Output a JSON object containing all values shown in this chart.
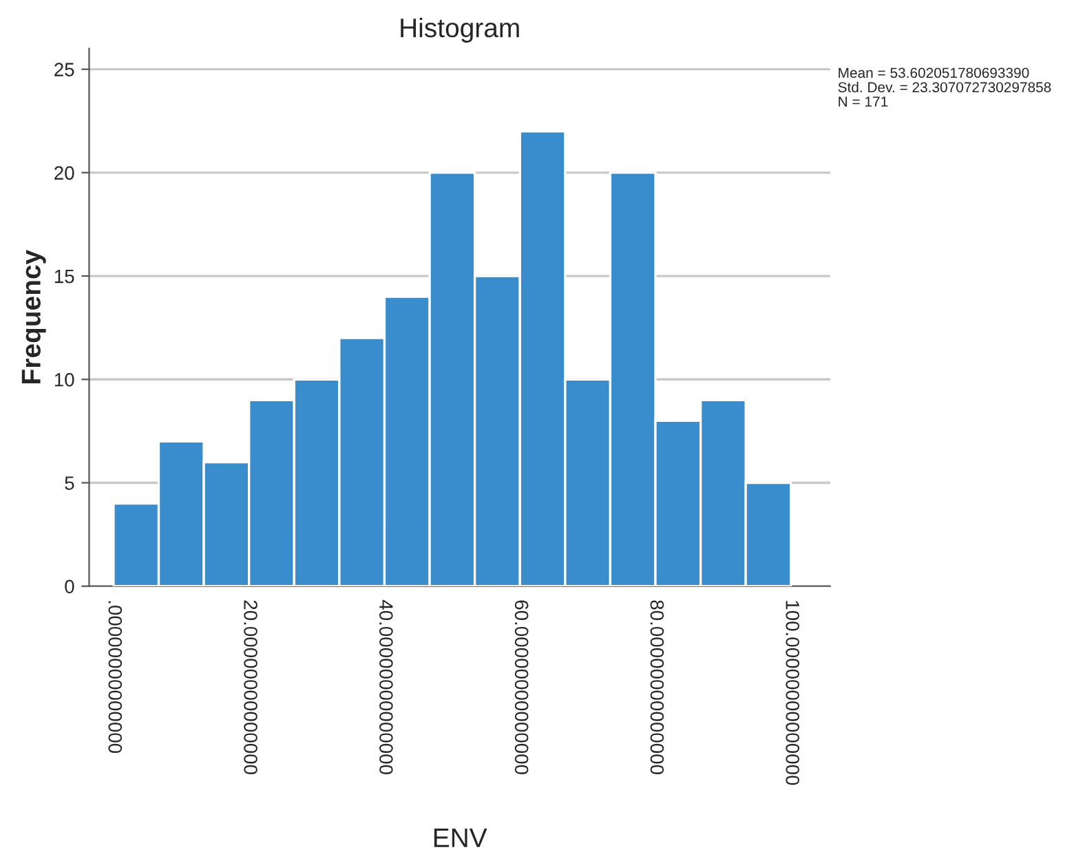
{
  "chart_data": {
    "type": "histogram",
    "title": "Histogram",
    "xlabel": "ENV",
    "ylabel": "Frequency",
    "bins": [
      0,
      6.67,
      13.33,
      20,
      26.67,
      33.33,
      40,
      46.67,
      53.33,
      60,
      66.67,
      73.33,
      80,
      86.67,
      93.33,
      100
    ],
    "values": [
      4,
      7,
      6,
      9,
      10,
      12,
      14,
      20,
      15,
      22,
      10,
      20,
      8,
      9,
      5
    ],
    "color": "#3a8dcc",
    "xlim": [
      -3.6,
      105.8
    ],
    "xticks": [
      {
        "value": 0,
        "label": ".00000000000000"
      },
      {
        "value": 20,
        "label": "20.00000000000000"
      },
      {
        "value": 40,
        "label": "40.00000000000000"
      },
      {
        "value": 60,
        "label": "60.00000000000000"
      },
      {
        "value": 80,
        "label": "80.00000000000000"
      },
      {
        "value": 100,
        "label": "100.00000000000000"
      }
    ],
    "ylim": [
      0,
      26
    ],
    "yticks": [
      0,
      5,
      10,
      15,
      20,
      25
    ],
    "grid": "y",
    "annotations": [
      "Mean = 53.602051780693390\nStd. Dev. = 23.307072730297858\nN = 171"
    ]
  }
}
